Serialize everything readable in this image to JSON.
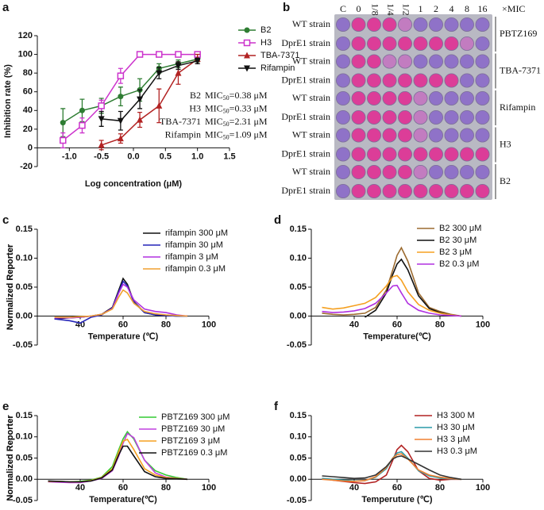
{
  "chart_data": [
    {
      "type": "dose",
      "panel": "a",
      "xlabel": "Log concentration (μM)",
      "ylabel": "Inhibition rate (%)",
      "xlim": [
        -1.5,
        1.5
      ],
      "xticks": [
        {
          "value": -1.0,
          "label": "-1.0"
        },
        -0.5,
        {
          "value": 0,
          "label": "0.0"
        },
        0.5,
        {
          "value": 1.0,
          "label": "1.0"
        },
        1.5
      ],
      "ylim": [
        -20,
        120
      ],
      "yticks": [
        -20,
        0,
        20,
        40,
        60,
        80,
        100,
        120
      ],
      "x": [
        -1.1,
        -0.8,
        -0.5,
        -0.2,
        0.1,
        0.4,
        0.7,
        1.0
      ],
      "series": [
        {
          "name": "B2",
          "color": "#2e7d32",
          "marker": "circle",
          "values": [
            27,
            40,
            45,
            55,
            62,
            85,
            90,
            95
          ],
          "errors": [
            15,
            12,
            8,
            10,
            12,
            5,
            4,
            3
          ]
        },
        {
          "name": "H3",
          "color": "#cc33cc",
          "marker": "square-open",
          "values": [
            8,
            24,
            45,
            77,
            100,
            100,
            100,
            100
          ],
          "errors": [
            8,
            8,
            6,
            8,
            2,
            2,
            2,
            2
          ]
        },
        {
          "name": "TBA-7371",
          "color": "#b22222",
          "marker": "triangle",
          "values": [
            null,
            null,
            3,
            10,
            30,
            45,
            80,
            95
          ],
          "errors": [
            null,
            null,
            5,
            5,
            8,
            18,
            12,
            5
          ]
        },
        {
          "name": "Rifampin",
          "color": "#111111",
          "marker": "triangle-down",
          "values": [
            null,
            null,
            31,
            29,
            52,
            80,
            88,
            93
          ],
          "errors": [
            null,
            null,
            8,
            10,
            10,
            6,
            4,
            3
          ]
        }
      ],
      "annotations": [
        {
          "name": "B2",
          "text": "MIC",
          "sub": "50",
          "value": "=0.38 μM"
        },
        {
          "name": "H3",
          "text": "MIC",
          "sub": "50",
          "value": "=0.33 μM"
        },
        {
          "name": "TBA-7371",
          "text": "MIC",
          "sub": "50",
          "value": "=2.31 μM"
        },
        {
          "name": "Rifampin",
          "text": "MIC",
          "sub": "50",
          "value": "=1.09 μM"
        }
      ]
    },
    {
      "type": "plate",
      "panel": "b",
      "columns": [
        "C",
        "0",
        "1/8",
        "1/4",
        "1/2",
        "1",
        "2",
        "4",
        "8",
        "16"
      ],
      "unit": "×MIC",
      "rows": [
        "WT strain",
        "DprE1 strain",
        "WT strain",
        "DprE1 strain",
        "WT strain",
        "DprE1 strain",
        "WT strain",
        "DprE1 strain",
        "WT strain",
        "DprE1 strain"
      ],
      "groups": [
        "PBTZ169",
        "TBA-7371",
        "Rifampin",
        "H3",
        "B2"
      ]
    },
    {
      "type": "line",
      "panel": "c",
      "xlabel": "Temperature (℃)",
      "ylabel": "Normalized Reporter",
      "xlim": [
        20,
        100
      ],
      "xticks": [
        40,
        60,
        80,
        100
      ],
      "ylim": [
        -0.05,
        0.15
      ],
      "yticks": [
        -0.05,
        {
          "value": 0,
          "label": "0.00"
        },
        0.05,
        {
          "value": 0.1,
          "label": "0.10"
        },
        0.15
      ],
      "x": [
        28,
        35,
        40,
        45,
        50,
        55,
        58,
        60,
        62,
        65,
        70,
        75,
        80,
        85,
        90
      ],
      "series": [
        {
          "name": "rifampin 300 μM",
          "color": "#111111",
          "values": [
            -0.005,
            -0.003,
            -0.002,
            0,
            0.003,
            0.015,
            0.045,
            0.065,
            0.055,
            0.025,
            0.006,
            0.002,
            0.001,
            0,
            0
          ]
        },
        {
          "name": "rifampin 30 μM",
          "color": "#2424b8",
          "values": [
            -0.005,
            -0.008,
            -0.012,
            -0.002,
            0.002,
            0.014,
            0.042,
            0.06,
            0.052,
            0.024,
            0.006,
            0.002,
            0.001,
            0,
            0
          ]
        },
        {
          "name": "rifampin 3 μM",
          "color": "#b030e0",
          "values": [
            -0.003,
            -0.003,
            -0.002,
            0,
            0.003,
            0.013,
            0.04,
            0.055,
            0.05,
            0.028,
            0.012,
            0.008,
            0.006,
            0.002,
            0
          ]
        },
        {
          "name": "rifampin 0.3 μM",
          "color": "#f0a030",
          "values": [
            -0.002,
            -0.002,
            -0.001,
            0,
            0.003,
            0.012,
            0.033,
            0.045,
            0.04,
            0.022,
            0.008,
            0.004,
            0.002,
            0.001,
            0
          ]
        }
      ]
    },
    {
      "type": "line",
      "panel": "d",
      "xlabel": "Temperature(℃)",
      "ylabel": "Normalized Reporter",
      "xlim": [
        20,
        100
      ],
      "xticks": [
        40,
        60,
        80,
        100
      ],
      "ylim": [
        -0.05,
        0.15
      ],
      "yticks": [
        -0.05,
        {
          "value": 0,
          "label": "0.00"
        },
        0.05,
        {
          "value": 0.1,
          "label": "0.10"
        },
        0.15
      ],
      "x": [
        25,
        30,
        35,
        40,
        45,
        50,
        55,
        58,
        60,
        62,
        65,
        70,
        75,
        80,
        85,
        90
      ],
      "series": [
        {
          "name": "B2 300 μM",
          "color": "#9c6b30",
          "values": [
            0.005,
            0.003,
            0.002,
            0.003,
            0.005,
            0.015,
            0.045,
            0.08,
            0.105,
            0.118,
            0.095,
            0.04,
            0.015,
            0.008,
            0.003,
            0
          ]
        },
        {
          "name": "B2 30 μM",
          "color": "#111111",
          "values": [
            null,
            null,
            null,
            null,
            -0.002,
            0.01,
            0.04,
            0.072,
            0.09,
            0.098,
            0.08,
            0.035,
            0.013,
            0.006,
            0.002,
            0
          ]
        },
        {
          "name": "B2 3 μM",
          "color": "#f5a020",
          "values": [
            0.015,
            0.012,
            0.014,
            0.018,
            0.022,
            0.032,
            0.052,
            0.068,
            0.07,
            0.062,
            0.042,
            0.02,
            0.01,
            0.005,
            0.002,
            0
          ]
        },
        {
          "name": "B2 0.3 μM",
          "color": "#b030e0",
          "values": [
            0.008,
            0.006,
            0.007,
            0.009,
            0.013,
            0.022,
            0.04,
            0.052,
            0.053,
            0.04,
            0.022,
            0.01,
            0.005,
            0.002,
            0.001,
            0
          ]
        }
      ]
    },
    {
      "type": "line",
      "panel": "e",
      "xlabel": "Temperature(℃)",
      "ylabel": "Normalized Reporter",
      "xlim": [
        20,
        100
      ],
      "xticks": [
        40,
        60,
        80,
        100
      ],
      "ylim": [
        -0.05,
        0.15
      ],
      "yticks": [
        -0.05,
        {
          "value": 0,
          "label": "0.00"
        },
        0.05,
        {
          "value": 0.1,
          "label": "0.10"
        },
        0.15
      ],
      "x": [
        25,
        30,
        35,
        40,
        45,
        50,
        55,
        58,
        60,
        62,
        65,
        70,
        75,
        80,
        85,
        90
      ],
      "series": [
        {
          "name": "PBTZ169 300 μM",
          "color": "#33cc33",
          "values": [
            -0.005,
            -0.005,
            -0.006,
            -0.005,
            -0.002,
            0.005,
            0.03,
            0.07,
            0.095,
            0.112,
            0.095,
            0.045,
            0.02,
            0.01,
            0.004,
            0
          ]
        },
        {
          "name": "PBTZ169 30 μM",
          "color": "#c040e0",
          "values": [
            -0.006,
            -0.007,
            -0.008,
            -0.008,
            -0.004,
            0.002,
            0.02,
            0.055,
            0.085,
            0.108,
            0.098,
            0.045,
            0.015,
            0.005,
            0.002,
            0
          ]
        },
        {
          "name": "PBTZ169 3 μM",
          "color": "#f5a020",
          "values": [
            -0.005,
            -0.005,
            -0.006,
            -0.006,
            -0.003,
            0.004,
            0.025,
            0.065,
            0.09,
            0.094,
            0.07,
            0.025,
            0.01,
            0.004,
            0.002,
            0
          ]
        },
        {
          "name": "PBTZ169 0.3 μM",
          "color": "#111111",
          "values": [
            -0.004,
            -0.005,
            -0.006,
            -0.006,
            -0.004,
            0.003,
            0.022,
            0.058,
            0.078,
            0.078,
            0.055,
            0.018,
            0.006,
            0.002,
            0.001,
            0
          ]
        }
      ]
    },
    {
      "type": "line",
      "panel": "f",
      "xlabel": "Temperuture (℃)",
      "ylabel": "Normalized Reporter",
      "xlim": [
        20,
        100
      ],
      "xticks": [
        40,
        60,
        80,
        100
      ],
      "ylim": [
        -0.05,
        0.15
      ],
      "yticks": [
        -0.05,
        {
          "value": 0,
          "label": "0.00"
        },
        0.05,
        {
          "value": 0.1,
          "label": "0.10"
        },
        0.15
      ],
      "x": [
        25,
        30,
        35,
        40,
        45,
        50,
        55,
        58,
        60,
        62,
        65,
        70,
        75,
        80,
        85,
        90
      ],
      "series": [
        {
          "name": "H3 300 M",
          "color": "#b22222",
          "values": [
            0.002,
            -0.002,
            -0.005,
            -0.008,
            -0.01,
            -0.006,
            0.01,
            0.045,
            0.07,
            0.08,
            0.065,
            0.02,
            0.002,
            -0.002,
            0,
            0
          ]
        },
        {
          "name": "H3 30 μM",
          "color": "#2a9aa8",
          "values": [
            0.002,
            0,
            -0.002,
            -0.004,
            -0.003,
            0.005,
            0.025,
            0.05,
            0.062,
            0.065,
            0.05,
            0.02,
            0.008,
            0.003,
            0.001,
            0
          ]
        },
        {
          "name": "H3 3 μM",
          "color": "#f08030",
          "values": [
            0,
            -0.002,
            -0.004,
            -0.005,
            -0.003,
            0.006,
            0.028,
            0.05,
            0.058,
            0.06,
            0.048,
            0.022,
            0.01,
            0.005,
            0.002,
            0
          ]
        },
        {
          "name": "H3 0.3 μM",
          "color": "#333333",
          "values": [
            0.008,
            0.006,
            0.004,
            0.002,
            0.003,
            0.01,
            0.03,
            0.048,
            0.053,
            0.055,
            0.048,
            0.035,
            0.022,
            0.01,
            0.004,
            0
          ]
        }
      ]
    }
  ]
}
